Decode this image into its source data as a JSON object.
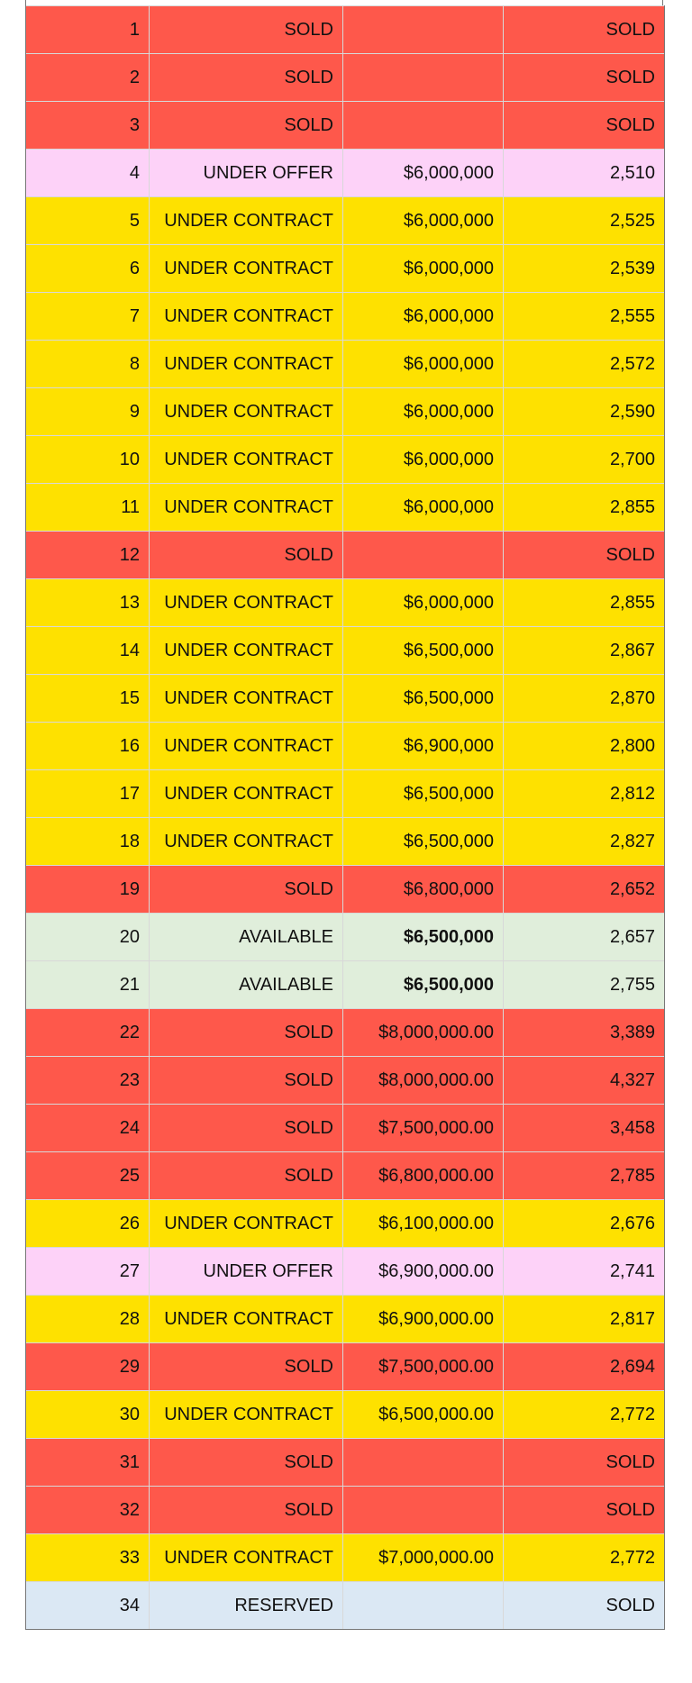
{
  "table": {
    "rows": [
      {
        "cells": [
          1,
          "SOLD",
          null,
          "SOLD"
        ],
        "color": "#fe584b"
      },
      {
        "cells": [
          2,
          "SOLD",
          null,
          "SOLD"
        ],
        "color": "#fe584b"
      },
      {
        "cells": [
          3,
          "SOLD",
          null,
          "SOLD"
        ],
        "color": "#fe584b"
      },
      {
        "cells": [
          4,
          "UNDER OFFER",
          "$6,000,000",
          "2,510"
        ],
        "color": "#fdd2f8"
      },
      {
        "cells": [
          5,
          "UNDER CONTRACT",
          "$6,000,000",
          "2,525"
        ],
        "color": "#fee100"
      },
      {
        "cells": [
          6,
          "UNDER CONTRACT",
          "$6,000,000",
          "2,539"
        ],
        "color": "#fee100"
      },
      {
        "cells": [
          7,
          "UNDER CONTRACT",
          "$6,000,000",
          "2,555"
        ],
        "color": "#fee100"
      },
      {
        "cells": [
          8,
          "UNDER CONTRACT",
          "$6,000,000",
          "2,572"
        ],
        "color": "#fee100"
      },
      {
        "cells": [
          9,
          "UNDER CONTRACT",
          "$6,000,000",
          "2,590"
        ],
        "color": "#fee100"
      },
      {
        "cells": [
          10,
          "UNDER CONTRACT",
          "$6,000,000",
          "2,700"
        ],
        "color": "#fee100"
      },
      {
        "cells": [
          11,
          "UNDER CONTRACT",
          "$6,000,000",
          "2,855"
        ],
        "color": "#fee100"
      },
      {
        "cells": [
          12,
          "SOLD",
          null,
          "SOLD"
        ],
        "color": "#fe584b"
      },
      {
        "cells": [
          13,
          "UNDER CONTRACT",
          "$6,000,000",
          "2,855"
        ],
        "color": "#fee100"
      },
      {
        "cells": [
          14,
          "UNDER CONTRACT",
          "$6,500,000",
          "2,867"
        ],
        "color": "#fee100"
      },
      {
        "cells": [
          15,
          "UNDER CONTRACT",
          "$6,500,000",
          "2,870"
        ],
        "color": "#fee100"
      },
      {
        "cells": [
          16,
          "UNDER CONTRACT",
          "$6,900,000",
          "2,800"
        ],
        "color": "#fee100"
      },
      {
        "cells": [
          17,
          "UNDER CONTRACT",
          "$6,500,000",
          "2,812"
        ],
        "color": "#fee100"
      },
      {
        "cells": [
          18,
          "UNDER CONTRACT",
          "$6,500,000",
          "2,827"
        ],
        "color": "#fee100"
      },
      {
        "cells": [
          19,
          "SOLD",
          "$6,800,000",
          "2,652"
        ],
        "color": "#fe584b"
      },
      {
        "cells": [
          20,
          "AVAILABLE",
          "$6,500,000",
          "2,657"
        ],
        "color": "#e0eedb",
        "bold": true
      },
      {
        "cells": [
          21,
          "AVAILABLE",
          "$6,500,000",
          "2,755"
        ],
        "color": "#e0eedb",
        "bold": true
      },
      {
        "cells": [
          22,
          "SOLD",
          "$8,000,000.00",
          "3,389"
        ],
        "color": "#fe584b"
      },
      {
        "cells": [
          23,
          "SOLD",
          "$8,000,000.00",
          "4,327"
        ],
        "color": "#fe584b"
      },
      {
        "cells": [
          24,
          "SOLD",
          "$7,500,000.00",
          "3,458"
        ],
        "color": "#fe584b"
      },
      {
        "cells": [
          25,
          "SOLD",
          "$6,800,000.00",
          "2,785"
        ],
        "color": "#fe584b"
      },
      {
        "cells": [
          26,
          "UNDER CONTRACT",
          "$6,100,000.00",
          "2,676"
        ],
        "color": "#fee100"
      },
      {
        "cells": [
          27,
          "UNDER OFFER",
          "$6,900,000.00",
          "2,741"
        ],
        "color": "#fdd2f8"
      },
      {
        "cells": [
          28,
          "UNDER CONTRACT",
          "$6,900,000.00",
          "2,817"
        ],
        "color": "#fee100"
      },
      {
        "cells": [
          29,
          "SOLD",
          "$7,500,000.00",
          "2,694"
        ],
        "color": "#fe584b"
      },
      {
        "cells": [
          30,
          "UNDER CONTRACT",
          "$6,500,000.00",
          "2,772"
        ],
        "color": "#fee100"
      },
      {
        "cells": [
          31,
          "SOLD",
          null,
          "SOLD"
        ],
        "color": "#fe584b"
      },
      {
        "cells": [
          32,
          "SOLD",
          null,
          "SOLD"
        ],
        "color": "#fe584b"
      },
      {
        "cells": [
          33,
          "UNDER CONTRACT",
          "$7,000,000.00",
          "2,772"
        ],
        "color": "#fee100"
      },
      {
        "cells": [
          34,
          "RESERVED",
          null,
          "SOLD"
        ],
        "color": "#dbe8f4"
      }
    ]
  }
}
